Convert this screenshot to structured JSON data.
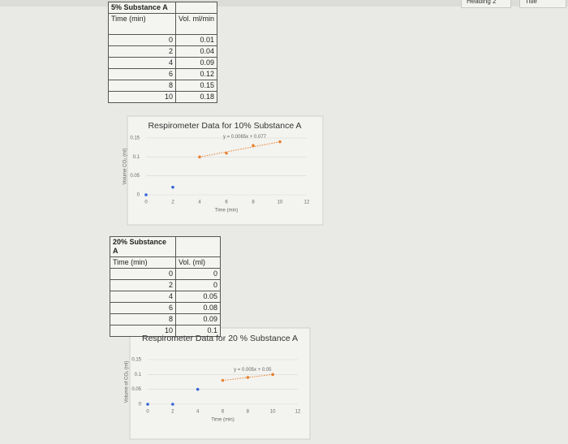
{
  "ribbon": {
    "styles": [
      "Heading 2",
      "Title"
    ]
  },
  "table1": {
    "title": "5% Substance A",
    "headers": [
      "Time (min)",
      "Vol. ml/min"
    ],
    "rows": [
      [
        0,
        0.01
      ],
      [
        2,
        0.04
      ],
      [
        4,
        0.09
      ],
      [
        6,
        0.12
      ],
      [
        8,
        0.15
      ],
      [
        10,
        0.18
      ]
    ]
  },
  "chart1": {
    "type": "scatter",
    "title": "Respirometer Data for 10% Substance A",
    "x_label": "Time (min)",
    "y_label": "Volume CO₂ (ml)",
    "trendline_label": "y = 0.0065x + 0.077",
    "xlim": [
      0,
      12
    ],
    "ylim": [
      0,
      0.15
    ],
    "xticks": [
      0,
      2,
      4,
      6,
      8,
      10,
      12
    ],
    "yticks": [
      0,
      0.05,
      0.1,
      0.15
    ],
    "series": [
      {
        "color": "#3566d6",
        "x": [
          0,
          2
        ],
        "values": [
          0,
          0.02
        ]
      },
      {
        "color": "#e8812d",
        "x": [
          4,
          6,
          8,
          10
        ],
        "values": [
          0.1,
          0.11,
          0.13,
          0.14
        ]
      }
    ]
  },
  "table2": {
    "title": "20% Substance A",
    "headers": [
      "Time (min)",
      "Vol. (ml)"
    ],
    "rows": [
      [
        0,
        0
      ],
      [
        2,
        0
      ],
      [
        4,
        0.05
      ],
      [
        6,
        0.08
      ],
      [
        8,
        0.09
      ],
      [
        10,
        0.1
      ]
    ]
  },
  "chart2": {
    "type": "scatter",
    "title": "Respirometer Data for 20 % Substance A",
    "x_label": "Time (min)",
    "y_label": "Volume of CO₂ (ml)",
    "trendline_label": "y = 0.005x + 0.05",
    "xlim": [
      0,
      12
    ],
    "ylim": [
      0,
      0.15
    ],
    "xticks": [
      0,
      2,
      4,
      6,
      8,
      10,
      12
    ],
    "yticks": [
      0,
      0.05,
      0.1,
      0.15
    ],
    "series": [
      {
        "color": "#3566d6",
        "x": [
          0,
          2,
          4
        ],
        "values": [
          0,
          0,
          0.05
        ]
      },
      {
        "color": "#e8812d",
        "x": [
          6,
          8,
          10
        ],
        "values": [
          0.08,
          0.09,
          0.1
        ]
      }
    ]
  }
}
